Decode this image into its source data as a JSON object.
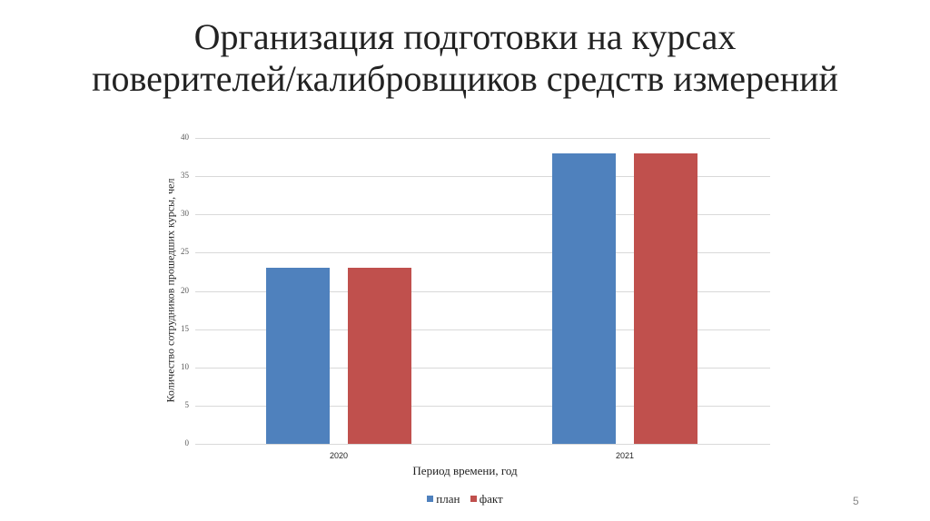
{
  "slide": {
    "title_lines": [
      "Организация подготовки на курсах",
      "поверителей/калибровщиков средств измерений"
    ],
    "page_number": "5"
  },
  "colors": {
    "plan": "#4f81bd",
    "fact": "#c0504d",
    "grid": "#d9d9d9"
  },
  "chart_data": {
    "type": "bar",
    "title": "",
    "categories": [
      "2020",
      "2021"
    ],
    "series": [
      {
        "name": "план",
        "values": [
          23,
          38
        ]
      },
      {
        "name": "факт",
        "values": [
          23,
          38
        ]
      }
    ],
    "xlabel": "Период времени, год",
    "ylabel": "Количество сотрудников прошедших курсы, чел",
    "ylim": [
      0,
      40
    ],
    "yticks": [
      "0",
      "5",
      "10",
      "15",
      "20",
      "25",
      "30",
      "35",
      "40"
    ],
    "grid": true,
    "legend_position": "bottom"
  }
}
